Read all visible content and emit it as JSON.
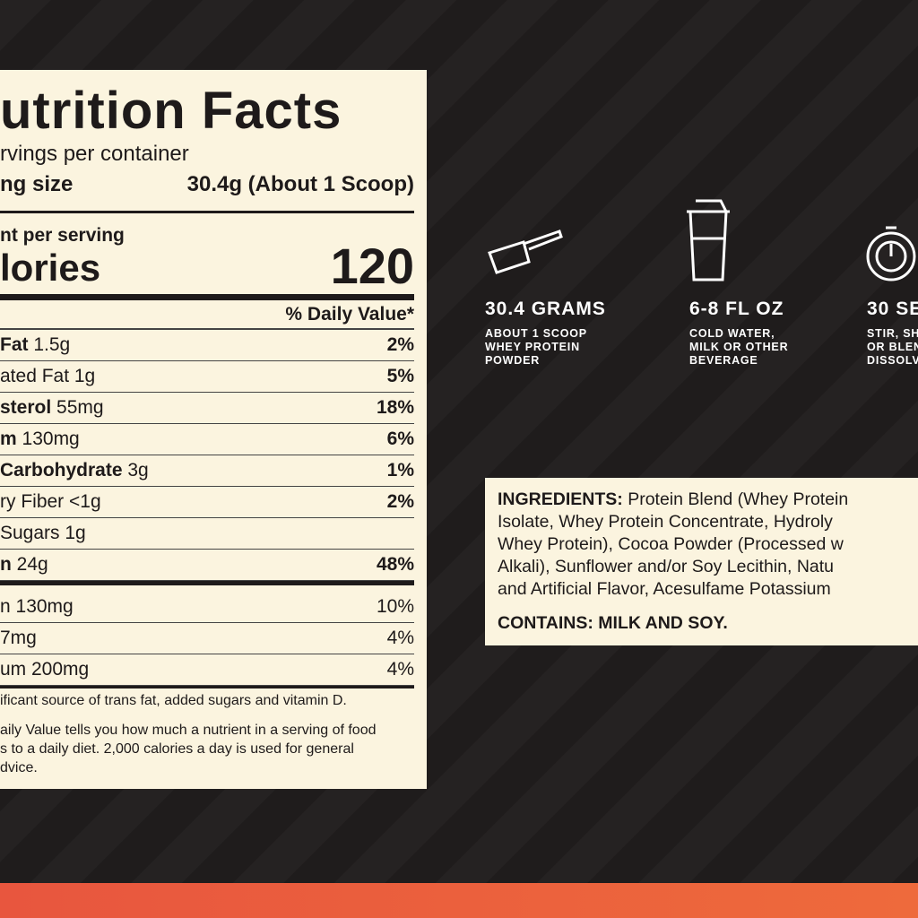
{
  "nutrition": {
    "title": "utrition Facts",
    "servings_per_container": "rvings per container",
    "serving_size": {
      "label": "ng size",
      "value": "30.4g (About 1 Scoop)"
    },
    "amount_per_serving": "nt per serving",
    "calories": {
      "label": "lories",
      "value": "120"
    },
    "daily_value_header": "% Daily Value*",
    "rows": [
      {
        "label": "Fat",
        "amount": "1.5g",
        "dv": "2%"
      },
      {
        "text": "ated Fat 1g",
        "dv": "5%"
      },
      {
        "label": "sterol",
        "amount": "55mg",
        "dv": "18%"
      },
      {
        "label": "m",
        "amount": "130mg",
        "dv": "6%"
      },
      {
        "label": "Carbohydrate",
        "amount": "3g",
        "dv": "1%"
      },
      {
        "text": "ry Fiber <1g",
        "dv": "2%"
      },
      {
        "text": "Sugars 1g"
      },
      {
        "label": "n",
        "amount": "24g",
        "dv": "48%"
      }
    ],
    "vitamins": [
      {
        "text": "n 130mg",
        "dv": "10%"
      },
      {
        "text": "7mg",
        "dv": "4%"
      },
      {
        "text": "um 200mg",
        "dv": "4%"
      }
    ],
    "footnote": "ificant source of trans fat, added sugars and vitamin D.",
    "footnote2": [
      "aily Value tells you how much a nutrient in a serving of food",
      "s to a daily diet. 2,000 calories a day is used for general",
      "dvice."
    ]
  },
  "steps": [
    {
      "title": "30.4 GRAMS",
      "lines": [
        "ABOUT 1 SCOOP",
        "WHEY PROTEIN",
        "POWDER"
      ]
    },
    {
      "title": "6-8 FL OZ",
      "lines": [
        "COLD WATER,",
        "MILK OR OTHER",
        "BEVERAGE"
      ]
    },
    {
      "title": "30 SE",
      "lines": [
        "STIR, SH",
        "OR BLEN",
        "DISSOLV"
      ]
    }
  ],
  "ingredients": {
    "label": "INGREDIENTS:",
    "first": "Protein Blend (Whey Protein",
    "lines": [
      "Isolate, Whey Protein Concentrate, Hydroly",
      "Whey Protein), Cocoa Powder (Processed w",
      "Alkali), Sunflower and/or Soy Lecithin, Natu",
      "and Artificial Flavor, Acesulfame Potassium"
    ],
    "contains": "CONTAINS: MILK AND SOY."
  }
}
